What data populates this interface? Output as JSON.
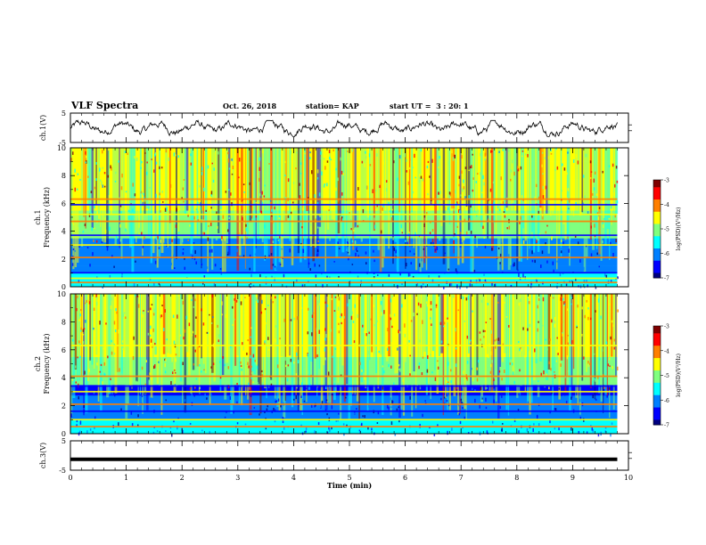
{
  "header": {
    "title": "VLF Spectra",
    "date": "Oct. 26, 2018",
    "station": "station= KAP",
    "start_ut": "start UT =  3 : 20: 1"
  },
  "chart_data": [
    {
      "type": "line",
      "panel": "ch1-waveform",
      "ylabel": "ch.1(V)",
      "ylim": [
        -5,
        5
      ],
      "y_tick_labels": [
        "5",
        "-5"
      ],
      "xlim": [
        0,
        10
      ],
      "series": [
        {
          "values_note": "noisy waveform",
          "x_range": [
            0,
            9.8
          ],
          "y_range": [
            -3,
            2.5
          ]
        }
      ]
    },
    {
      "type": "heatmap",
      "panel": "ch1-spectrogram",
      "ylabel": "ch.1\nFrequency (kHz)",
      "ylabel_lines": [
        "ch.1",
        "Frequency (kHz)"
      ],
      "ylim": [
        0,
        10
      ],
      "y_ticks": [
        0,
        2,
        4,
        6,
        8,
        10
      ],
      "xlim": [
        0,
        10
      ],
      "data_x_range": [
        0,
        9.8
      ],
      "colorbar": {
        "label": "log(PSD)(V²/Hz)",
        "range": [
          -7,
          -3
        ],
        "ticks": [
          "-3",
          "-4",
          "-5",
          "-6",
          "-7"
        ]
      },
      "bands_khz": [
        0.3,
        0.6,
        1.0,
        2.1,
        3.0,
        3.7,
        4.7,
        5.2,
        5.9,
        6.3
      ]
    },
    {
      "type": "heatmap",
      "panel": "ch2-spectrogram",
      "ylabel": "ch.2\nFrequency (kHz)",
      "ylabel_lines": [
        "ch.2",
        "Frequency (kHz)"
      ],
      "ylim": [
        0,
        10
      ],
      "y_ticks": [
        0,
        2,
        4,
        6,
        8,
        10
      ],
      "xlim": [
        0,
        10
      ],
      "data_x_range": [
        0,
        9.8
      ],
      "colorbar": {
        "label": "log(PSD)(V²/Hz)",
        "range": [
          -7,
          -3
        ],
        "ticks": [
          "-3",
          "-4",
          "-5",
          "-6",
          "-7"
        ]
      },
      "bands_khz": [
        0.5,
        1.0,
        1.6,
        2.1,
        3.0,
        3.4,
        4.1,
        6.3
      ]
    },
    {
      "type": "line",
      "panel": "ch3-waveform",
      "ylabel": "ch.3(V)",
      "ylim": [
        -5,
        5
      ],
      "y_tick_labels": [
        "5",
        "-5"
      ],
      "xlim": [
        0,
        10
      ],
      "xlabel": "Time (min)",
      "x_ticks": [
        0,
        1,
        2,
        3,
        4,
        5,
        6,
        7,
        8,
        9,
        10
      ],
      "series": [
        {
          "constant_value": -1.3,
          "x_range": [
            0,
            9.8
          ]
        }
      ]
    }
  ],
  "colors": {
    "colormap": [
      "#00007f",
      "#0000ff",
      "#007fff",
      "#00ffff",
      "#7fff7f",
      "#ffff00",
      "#ff7f00",
      "#ff0000",
      "#7f0000"
    ],
    "axis": "#000000"
  }
}
